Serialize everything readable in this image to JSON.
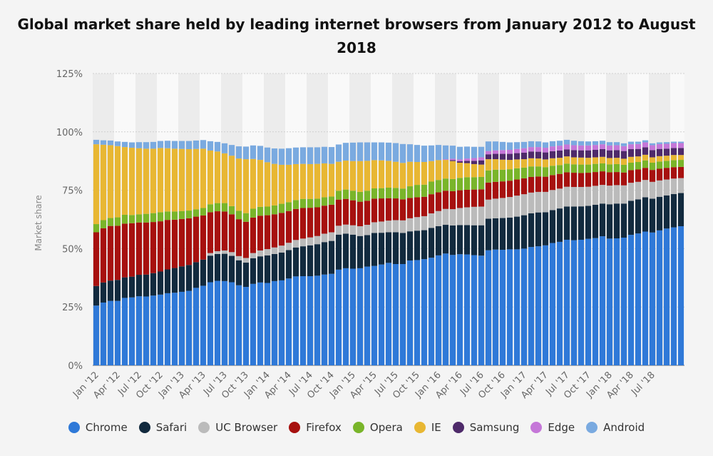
{
  "chart_data": {
    "type": "bar",
    "stacked": true,
    "title": "Global market share held by leading internet browsers from January 2012 to August 2018",
    "xlabel": "",
    "ylabel": "Market share",
    "ylim": [
      0,
      125
    ],
    "yticks": [
      "0%",
      "25%",
      "50%",
      "75%",
      "100%",
      "125%"
    ],
    "ytick_values": [
      0,
      25,
      50,
      75,
      100,
      125
    ],
    "x_tick_labels": [
      "Jan '12",
      "Apr '12",
      "Jul '12",
      "Oct '12",
      "Jan '13",
      "Apr '13",
      "Jul '13",
      "Oct '13",
      "Jan '14",
      "Apr '14",
      "Jul '14",
      "Oct '14",
      "Jan '15",
      "Apr '15",
      "Jul '15",
      "Oct '15",
      "Jan '16",
      "Apr '16",
      "Jul '16",
      "Oct '16",
      "Jan '17",
      "Apr '17",
      "Jul '17",
      "Oct '17",
      "Jan '18",
      "Apr '18",
      "Jul '18"
    ],
    "grid": true,
    "legend_position": "bottom",
    "series": [
      {
        "name": "Chrome",
        "color": "#2f79d8",
        "values": [
          25.6,
          26.9,
          27.6,
          27.6,
          28.9,
          29.1,
          29.6,
          29.5,
          29.9,
          30.3,
          30.9,
          31.1,
          31.5,
          31.9,
          33.2,
          34.1,
          35.6,
          36.2,
          36.1,
          35.6,
          34.3,
          33.6,
          34.9,
          35.5,
          35.3,
          36.1,
          36.4,
          37.2,
          38.1,
          38.2,
          38.2,
          38.4,
          38.9,
          39.2,
          41.0,
          41.6,
          41.4,
          41.6,
          42.3,
          42.6,
          43.2,
          43.9,
          43.4,
          43.4,
          44.9,
          45.1,
          45.5,
          46.1,
          47.1,
          47.9,
          47.3,
          47.6,
          47.5,
          47.2,
          47.0,
          49.3,
          49.6,
          49.5,
          49.7,
          49.7,
          50.0,
          50.7,
          51.0,
          51.4,
          52.4,
          52.9,
          53.8,
          53.6,
          53.8,
          54.2,
          54.5,
          55.3,
          54.3,
          54.4,
          54.7,
          55.9,
          56.5,
          57.3,
          56.9,
          57.8,
          58.6,
          59.1,
          59.6
        ]
      },
      {
        "name": "Safari",
        "color": "#122a3e",
        "values": [
          8.4,
          8.6,
          8.7,
          9.0,
          8.8,
          8.9,
          9.2,
          9.4,
          9.6,
          9.9,
          10.2,
          10.6,
          10.9,
          11.1,
          11.0,
          11.2,
          11.4,
          11.5,
          11.7,
          11.3,
          10.7,
          10.4,
          11.0,
          11.2,
          11.8,
          11.6,
          11.9,
          12.2,
          12.4,
          12.8,
          13.2,
          13.5,
          13.9,
          14.1,
          15.0,
          14.8,
          14.6,
          13.8,
          13.5,
          14.1,
          13.6,
          13.1,
          13.6,
          13.3,
          12.5,
          12.6,
          12.4,
          12.8,
          12.5,
          12.3,
          12.6,
          12.5,
          12.6,
          12.8,
          13.0,
          13.5,
          13.4,
          13.6,
          13.6,
          14.0,
          14.3,
          14.4,
          14.5,
          14.2,
          14.1,
          14.3,
          14.2,
          14.4,
          14.3,
          14.1,
          14.3,
          14.0,
          14.7,
          14.9,
          14.6,
          14.6,
          14.6,
          14.7,
          14.5,
          14.4,
          14.2,
          14.3,
          14.2
        ]
      },
      {
        "name": "UC Browser",
        "color": "#bbbbbb",
        "values": [
          0.0,
          0.0,
          0.0,
          0.0,
          0.0,
          0.0,
          0.0,
          0.0,
          0.0,
          0.0,
          0.0,
          0.0,
          0.0,
          0.0,
          0.0,
          0.0,
          1.1,
          1.2,
          1.4,
          1.6,
          1.8,
          2.0,
          2.2,
          2.5,
          2.7,
          2.8,
          3.0,
          3.1,
          3.2,
          3.3,
          3.4,
          3.5,
          3.6,
          3.7,
          3.8,
          3.9,
          4.0,
          4.2,
          4.4,
          4.6,
          4.8,
          5.0,
          5.2,
          5.4,
          5.6,
          5.8,
          6.0,
          6.2,
          6.5,
          6.8,
          7.0,
          7.3,
          7.6,
          7.9,
          8.0,
          8.2,
          8.4,
          8.6,
          8.8,
          9.0,
          9.0,
          8.9,
          8.8,
          8.7,
          8.6,
          8.5,
          8.5,
          8.4,
          8.3,
          8.2,
          8.1,
          8.0,
          8.0,
          7.9,
          7.8,
          7.7,
          7.5,
          7.4,
          7.2,
          7.0,
          6.8,
          6.6,
          6.4
        ]
      },
      {
        "name": "Firefox",
        "color": "#a7110f",
        "values": [
          23.0,
          23.2,
          23.4,
          23.2,
          23.0,
          22.9,
          22.4,
          22.3,
          21.9,
          21.5,
          21.2,
          20.7,
          20.3,
          20.0,
          19.5,
          18.9,
          17.5,
          17.1,
          16.7,
          16.2,
          15.8,
          15.5,
          15.2,
          14.9,
          14.5,
          14.2,
          14.0,
          13.6,
          13.3,
          13.1,
          12.7,
          12.3,
          12.0,
          11.8,
          11.2,
          11.0,
          10.7,
          10.5,
          10.3,
          10.1,
          9.9,
          9.6,
          9.3,
          9.0,
          8.7,
          8.5,
          8.3,
          8.2,
          8.0,
          7.8,
          7.7,
          7.6,
          7.5,
          7.4,
          7.4,
          7.3,
          7.2,
          7.1,
          7.0,
          6.9,
          6.8,
          6.7,
          6.6,
          6.5,
          6.4,
          6.3,
          6.2,
          6.1,
          6.0,
          6.0,
          5.9,
          5.8,
          5.7,
          5.6,
          5.5,
          5.4,
          5.3,
          5.2,
          5.1,
          5.0,
          5.0,
          4.9,
          4.8
        ]
      },
      {
        "name": "Opera",
        "color": "#79b52a",
        "values": [
          3.5,
          3.5,
          3.4,
          3.6,
          3.8,
          3.5,
          3.5,
          3.7,
          3.8,
          3.9,
          3.6,
          3.5,
          3.4,
          3.3,
          3.1,
          3.2,
          3.4,
          3.5,
          3.6,
          3.5,
          3.6,
          3.7,
          3.8,
          3.8,
          3.7,
          3.8,
          3.9,
          3.8,
          3.8,
          3.9,
          3.8,
          3.7,
          3.6,
          3.5,
          3.8,
          4.0,
          4.1,
          4.2,
          4.3,
          4.4,
          4.4,
          4.5,
          4.5,
          4.6,
          5.0,
          5.3,
          5.2,
          5.4,
          5.3,
          5.2,
          5.2,
          5.3,
          5.4,
          5.3,
          5.3,
          5.2,
          5.2,
          5.0,
          4.9,
          4.8,
          4.6,
          4.5,
          4.3,
          4.1,
          4.0,
          3.8,
          3.7,
          3.6,
          3.6,
          3.5,
          3.5,
          3.4,
          3.4,
          3.4,
          3.3,
          3.2,
          3.2,
          3.2,
          3.1,
          3.1,
          3.0,
          3.0,
          3.0
        ]
      },
      {
        "name": "IE",
        "color": "#e8b733",
        "values": [
          34.2,
          32.3,
          31.2,
          30.5,
          29.0,
          28.8,
          28.3,
          27.9,
          27.6,
          27.5,
          27.1,
          26.9,
          26.6,
          26.3,
          25.9,
          25.4,
          23.0,
          22.1,
          21.3,
          21.6,
          22.4,
          23.1,
          21.3,
          20.1,
          19.0,
          17.8,
          16.7,
          16.0,
          15.4,
          15.0,
          14.9,
          14.9,
          14.5,
          14.0,
          12.4,
          12.4,
          12.7,
          13.2,
          12.8,
          12.1,
          11.9,
          11.5,
          11.2,
          11.0,
          10.5,
          9.8,
          9.7,
          8.8,
          8.5,
          8.0,
          7.7,
          6.5,
          6.0,
          5.6,
          5.3,
          4.8,
          4.5,
          4.3,
          4.0,
          3.8,
          3.6,
          3.5,
          3.4,
          3.3,
          3.2,
          3.1,
          3.1,
          3.0,
          3.0,
          2.9,
          2.8,
          2.8,
          2.7,
          2.7,
          2.6,
          2.5,
          2.4,
          2.4,
          2.3,
          2.3,
          2.2,
          2.2,
          2.1
        ]
      },
      {
        "name": "Samsung",
        "color": "#4e2a6a",
        "values": [
          0,
          0,
          0,
          0,
          0,
          0,
          0,
          0,
          0,
          0,
          0,
          0,
          0,
          0,
          0,
          0,
          0,
          0,
          0,
          0,
          0,
          0,
          0,
          0,
          0,
          0,
          0,
          0,
          0,
          0,
          0,
          0,
          0,
          0,
          0,
          0,
          0,
          0,
          0,
          0,
          0,
          0,
          0,
          0,
          0,
          0,
          0,
          0,
          0,
          0,
          0.4,
          0.6,
          1.0,
          1.4,
          1.8,
          2.1,
          2.3,
          2.5,
          2.6,
          2.7,
          2.8,
          2.9,
          2.9,
          3.0,
          3.0,
          3.1,
          3.0,
          3.1,
          3.1,
          3.2,
          3.2,
          3.3,
          3.3,
          3.3,
          3.3,
          3.3,
          3.2,
          3.2,
          3.1,
          3.1,
          3.0,
          3.0,
          3.0
        ]
      },
      {
        "name": "Edge",
        "color": "#c577d8",
        "values": [
          0,
          0,
          0,
          0,
          0,
          0,
          0,
          0,
          0,
          0,
          0,
          0,
          0,
          0,
          0,
          0,
          0,
          0,
          0,
          0,
          0,
          0,
          0,
          0,
          0,
          0,
          0,
          0,
          0,
          0,
          0,
          0,
          0,
          0,
          0,
          0,
          0,
          0,
          0,
          0,
          0,
          0,
          0,
          0,
          0,
          0,
          0,
          0,
          0,
          0.3,
          0.6,
          0.8,
          1.0,
          1.2,
          1.3,
          1.4,
          1.5,
          1.6,
          1.7,
          1.8,
          1.9,
          1.9,
          2.0,
          2.0,
          2.1,
          2.1,
          2.1,
          2.1,
          2.1,
          2.1,
          2.1,
          2.1,
          2.1,
          2.1,
          2.1,
          2.1,
          2.1,
          2.1,
          2.1,
          2.1,
          2.1,
          2.1,
          2.1
        ]
      },
      {
        "name": "Android",
        "color": "#7aaae0",
        "values": [
          1.9,
          1.9,
          2.0,
          2.0,
          2.2,
          2.3,
          2.6,
          2.8,
          2.9,
          3.0,
          3.2,
          3.3,
          3.4,
          3.5,
          3.6,
          3.7,
          4.0,
          4.1,
          4.3,
          4.6,
          5.2,
          5.4,
          5.8,
          6.0,
          6.3,
          6.6,
          6.9,
          7.1,
          7.1,
          7.1,
          7.2,
          7.1,
          7.1,
          7.2,
          7.4,
          7.6,
          7.9,
          8.0,
          7.9,
          7.6,
          7.7,
          7.8,
          8.0,
          8.1,
          7.5,
          7.3,
          7.0,
          6.7,
          6.5,
          5.9,
          5.6,
          5.4,
          5.1,
          4.8,
          4.5,
          4.1,
          3.8,
          3.5,
          3.2,
          2.9,
          2.7,
          2.5,
          2.4,
          2.3,
          2.2,
          2.1,
          2.0,
          1.9,
          1.8,
          1.7,
          1.6,
          1.5,
          1.4,
          1.3,
          1.2,
          1.1,
          1.0,
          0.9,
          0.8,
          0.7,
          0.7,
          0.6,
          0.6
        ]
      }
    ]
  }
}
